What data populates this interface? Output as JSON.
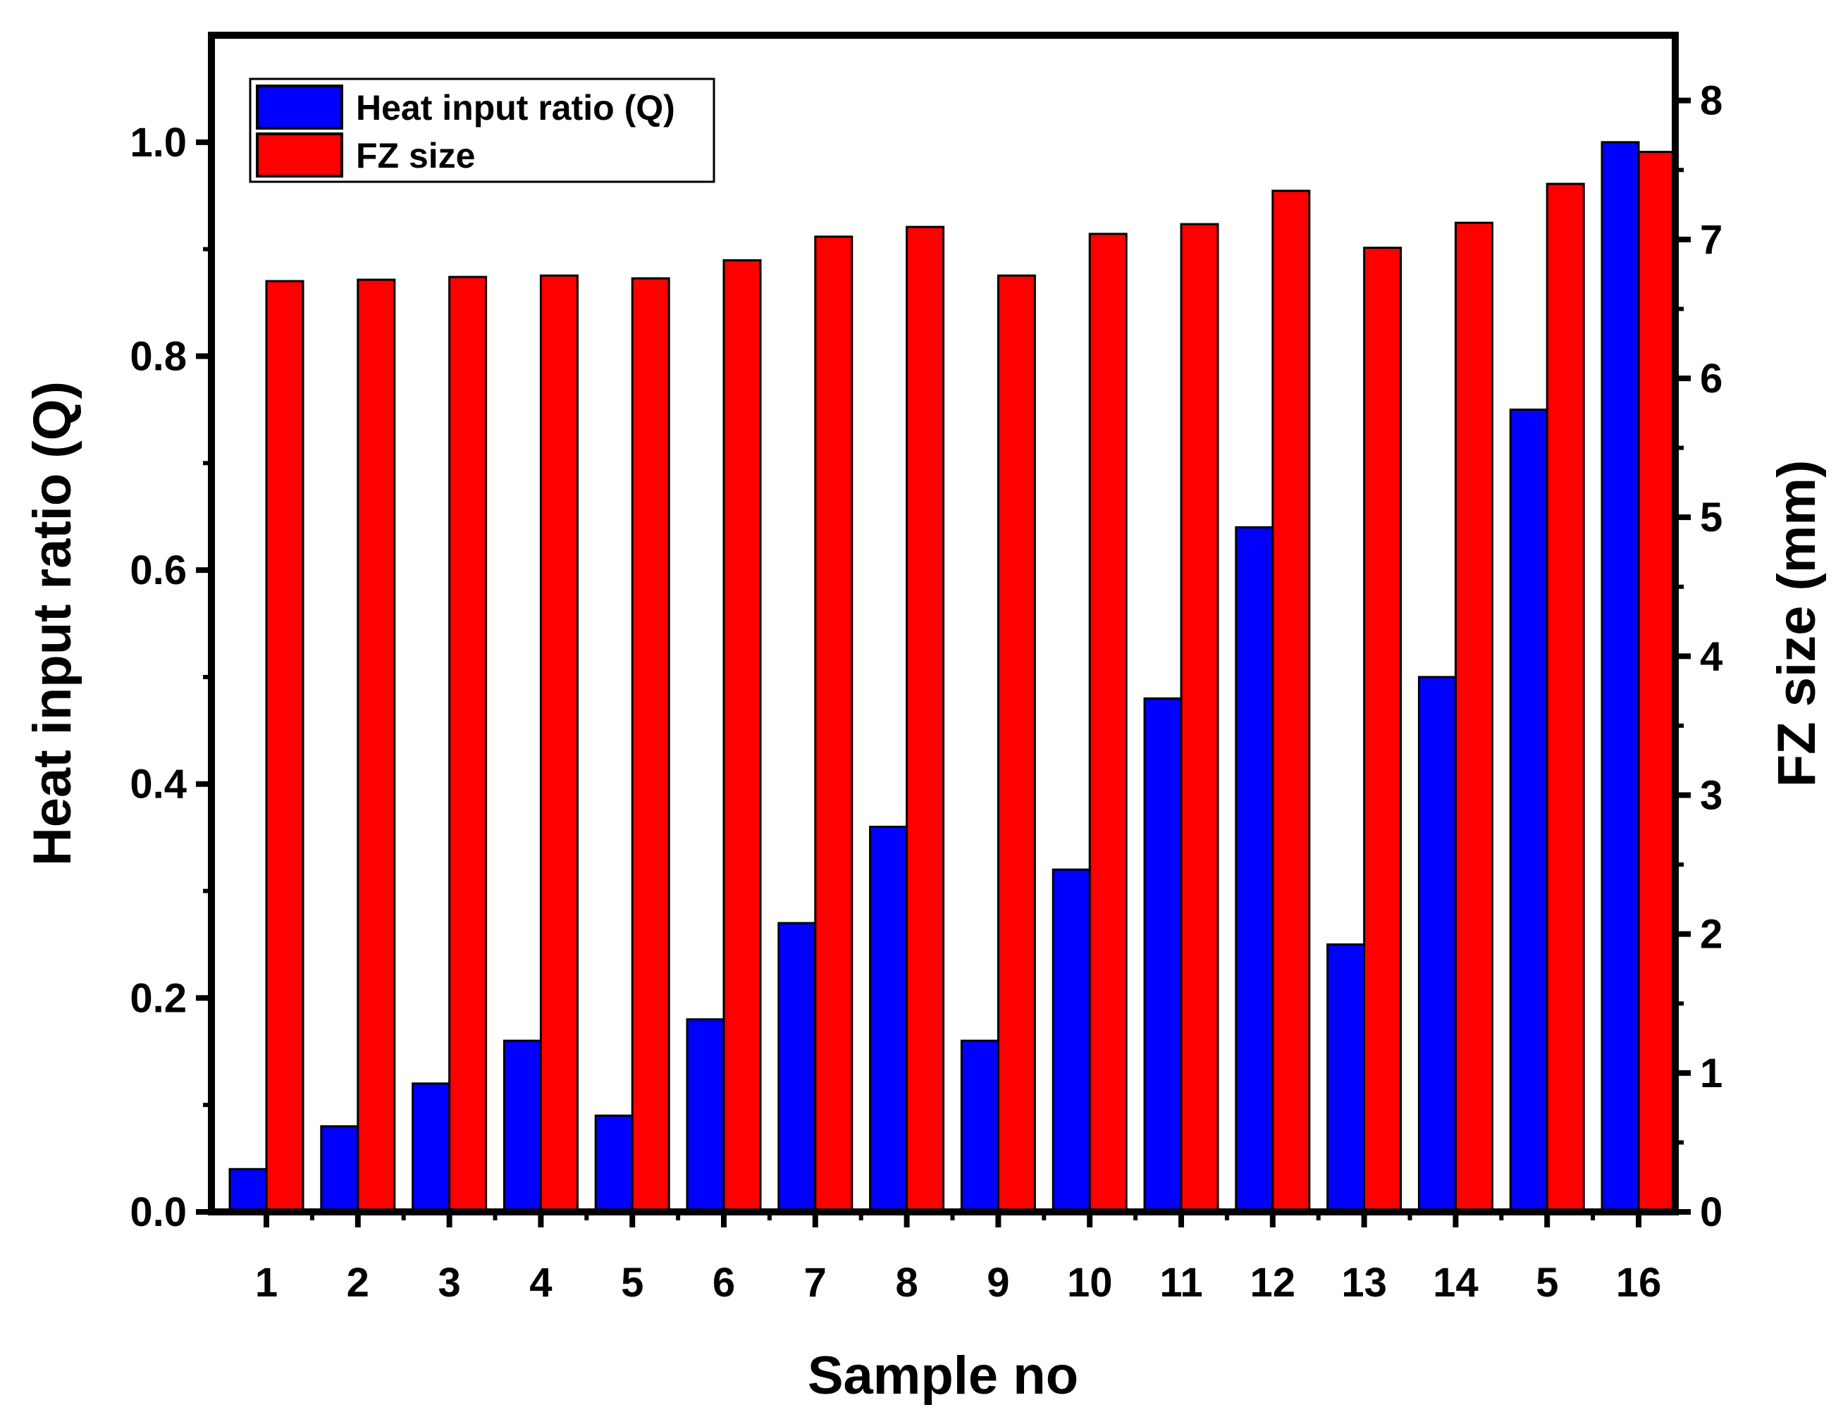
{
  "chart_data": {
    "type": "bar",
    "categories": [
      "1",
      "2",
      "3",
      "4",
      "5",
      "6",
      "7",
      "8",
      "9",
      "10",
      "11",
      "12",
      "13",
      "14",
      "5",
      "16"
    ],
    "series": [
      {
        "name": "Heat input ratio (Q)",
        "axis": "left",
        "color": "#0000ff",
        "values": [
          0.04,
          0.08,
          0.12,
          0.16,
          0.09,
          0.18,
          0.27,
          0.36,
          0.16,
          0.32,
          0.48,
          0.64,
          0.25,
          0.5,
          0.75,
          1.0
        ]
      },
      {
        "name": "FZ size",
        "axis": "right",
        "color": "#ff0000",
        "values": [
          6.7,
          6.71,
          6.73,
          6.74,
          6.72,
          6.85,
          7.02,
          7.09,
          6.74,
          7.04,
          7.11,
          7.35,
          6.94,
          7.12,
          7.4,
          7.63
        ]
      }
    ],
    "xlabel": "Sample no",
    "ylabel": "Heat input ratio (Q)",
    "y2label": "FZ size (mm)",
    "ylim": [
      0,
      1.1
    ],
    "y2lim": [
      0,
      8.47
    ],
    "yticks": [
      "0.0",
      "0.2",
      "0.4",
      "0.6",
      "0.8",
      "1.0"
    ],
    "y2ticks": [
      "0",
      "1",
      "2",
      "3",
      "4",
      "5",
      "6",
      "7",
      "8"
    ],
    "legend_position": "top-left",
    "grid": false
  }
}
